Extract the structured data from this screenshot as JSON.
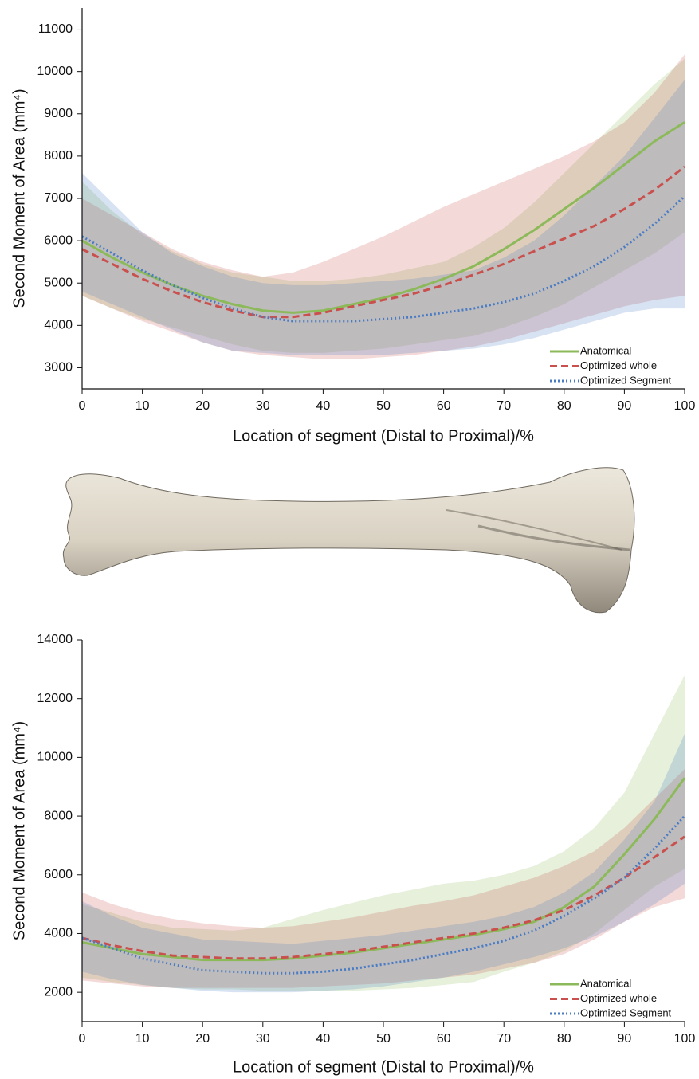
{
  "chart_data": [
    {
      "type": "line",
      "ylabel": "Second Moment of Area (mm⁴)",
      "xlabel": "Location of segment (Distal to Proximal)/%",
      "x": [
        0,
        5,
        10,
        15,
        20,
        25,
        30,
        35,
        40,
        45,
        50,
        55,
        60,
        65,
        70,
        75,
        80,
        85,
        90,
        95,
        100
      ],
      "xlim": [
        0,
        100
      ],
      "xticks": [
        0,
        10,
        20,
        30,
        40,
        50,
        60,
        70,
        80,
        90,
        100
      ],
      "ylim": [
        2500,
        11500
      ],
      "yticks": [
        3000,
        4000,
        5000,
        6000,
        7000,
        8000,
        9000,
        10000,
        11000
      ],
      "legend": "lower right",
      "series": [
        {
          "name": "Anatomical",
          "color": "#8cba5a",
          "style": "solid",
          "values": [
            6000,
            5600,
            5250,
            4950,
            4700,
            4500,
            4350,
            4300,
            4350,
            4500,
            4650,
            4850,
            5100,
            5400,
            5800,
            6250,
            6750,
            7250,
            7800,
            8350,
            8800
          ],
          "lower": [
            4700,
            4400,
            4150,
            3950,
            3750,
            3550,
            3400,
            3350,
            3350,
            3400,
            3450,
            3550,
            3650,
            3750,
            3950,
            4200,
            4500,
            4900,
            5300,
            5700,
            6200
          ],
          "upper": [
            7400,
            6700,
            6150,
            5750,
            5450,
            5250,
            5150,
            5050,
            5050,
            5100,
            5200,
            5350,
            5500,
            5850,
            6300,
            6900,
            7600,
            8300,
            9000,
            9700,
            10300
          ]
        },
        {
          "name": "Optimized whole",
          "color": "#c9504d",
          "style": "dashed",
          "values": [
            5800,
            5450,
            5100,
            4800,
            4550,
            4350,
            4200,
            4200,
            4300,
            4450,
            4600,
            4750,
            4950,
            5200,
            5450,
            5750,
            6050,
            6350,
            6750,
            7200,
            7750
          ],
          "lower": [
            4700,
            4400,
            4100,
            3850,
            3600,
            3400,
            3300,
            3250,
            3200,
            3200,
            3250,
            3300,
            3400,
            3500,
            3650,
            3850,
            4050,
            4250,
            4450,
            4600,
            4700
          ],
          "upper": [
            7000,
            6600,
            6200,
            5800,
            5500,
            5300,
            5150,
            5250,
            5500,
            5800,
            6100,
            6450,
            6800,
            7100,
            7400,
            7700,
            8000,
            8350,
            8800,
            9500,
            10400
          ]
        },
        {
          "name": "Optimized Segment",
          "color": "#4a7cc4",
          "style": "dotted",
          "values": [
            6100,
            5700,
            5300,
            4950,
            4650,
            4400,
            4200,
            4100,
            4100,
            4100,
            4150,
            4200,
            4300,
            4400,
            4550,
            4750,
            5050,
            5400,
            5850,
            6400,
            7050
          ],
          "lower": [
            4800,
            4500,
            4200,
            3900,
            3600,
            3400,
            3350,
            3300,
            3300,
            3300,
            3300,
            3350,
            3400,
            3450,
            3550,
            3700,
            3900,
            4100,
            4300,
            4400,
            4400
          ],
          "upper": [
            7600,
            6900,
            6200,
            5700,
            5400,
            5150,
            5000,
            4950,
            4950,
            5000,
            5050,
            5100,
            5200,
            5300,
            5600,
            6000,
            6600,
            7300,
            8000,
            8900,
            9800
          ]
        }
      ]
    },
    {
      "type": "line",
      "ylabel": "Second Moment of Area (mm⁴)",
      "xlabel": "Location of segment (Distal to Proximal)/%",
      "x": [
        0,
        5,
        10,
        15,
        20,
        25,
        30,
        35,
        40,
        45,
        50,
        55,
        60,
        65,
        70,
        75,
        80,
        85,
        90,
        95,
        100
      ],
      "xlim": [
        0,
        100
      ],
      "xticks": [
        0,
        10,
        20,
        30,
        40,
        50,
        60,
        70,
        80,
        90,
        100
      ],
      "ylim": [
        1000,
        14000
      ],
      "yticks": [
        2000,
        4000,
        6000,
        8000,
        10000,
        12000,
        14000
      ],
      "legend": "lower right",
      "series": [
        {
          "name": "Anatomical",
          "color": "#8cba5a",
          "style": "solid",
          "values": [
            3700,
            3500,
            3300,
            3200,
            3100,
            3100,
            3100,
            3150,
            3250,
            3350,
            3500,
            3650,
            3800,
            3950,
            4150,
            4400,
            4900,
            5600,
            6700,
            7900,
            9300
          ],
          "lower": [
            2500,
            2350,
            2250,
            2150,
            2100,
            2100,
            2050,
            2050,
            2050,
            2050,
            2100,
            2150,
            2250,
            2350,
            2700,
            3000,
            3400,
            4000,
            4800,
            5600,
            6200
          ],
          "upper": [
            5000,
            4700,
            4400,
            4200,
            4150,
            4100,
            4200,
            4500,
            4800,
            5050,
            5300,
            5500,
            5700,
            5800,
            6000,
            6300,
            6800,
            7600,
            8800,
            10800,
            12800
          ]
        },
        {
          "name": "Optimized whole",
          "color": "#c9504d",
          "style": "dashed",
          "values": [
            3850,
            3600,
            3400,
            3250,
            3200,
            3150,
            3150,
            3200,
            3300,
            3400,
            3550,
            3700,
            3850,
            4000,
            4200,
            4450,
            4800,
            5300,
            5900,
            6600,
            7300
          ],
          "lower": [
            2400,
            2300,
            2200,
            2150,
            2150,
            2150,
            2150,
            2150,
            2200,
            2250,
            2300,
            2400,
            2500,
            2600,
            2800,
            3000,
            3300,
            3800,
            4400,
            4900,
            5200
          ],
          "upper": [
            5400,
            5000,
            4700,
            4500,
            4350,
            4250,
            4200,
            4250,
            4400,
            4550,
            4750,
            4950,
            5100,
            5300,
            5600,
            5900,
            6300,
            6800,
            7600,
            8600,
            9600
          ]
        },
        {
          "name": "Optimized Segment",
          "color": "#4a7cc4",
          "style": "dotted",
          "values": [
            3850,
            3500,
            3150,
            2950,
            2750,
            2700,
            2650,
            2650,
            2700,
            2800,
            2950,
            3100,
            3300,
            3500,
            3750,
            4100,
            4600,
            5200,
            5900,
            6900,
            8000
          ],
          "lower": [
            2700,
            2450,
            2250,
            2150,
            2050,
            2000,
            2000,
            2000,
            2050,
            2100,
            2200,
            2350,
            2500,
            2700,
            2950,
            3200,
            3500,
            3900,
            4400,
            5000,
            5700
          ],
          "upper": [
            5100,
            4600,
            4200,
            4000,
            3800,
            3750,
            3700,
            3650,
            3750,
            3850,
            3950,
            4100,
            4250,
            4400,
            4600,
            4900,
            5400,
            6100,
            7200,
            8500,
            10800
          ]
        }
      ]
    }
  ]
}
